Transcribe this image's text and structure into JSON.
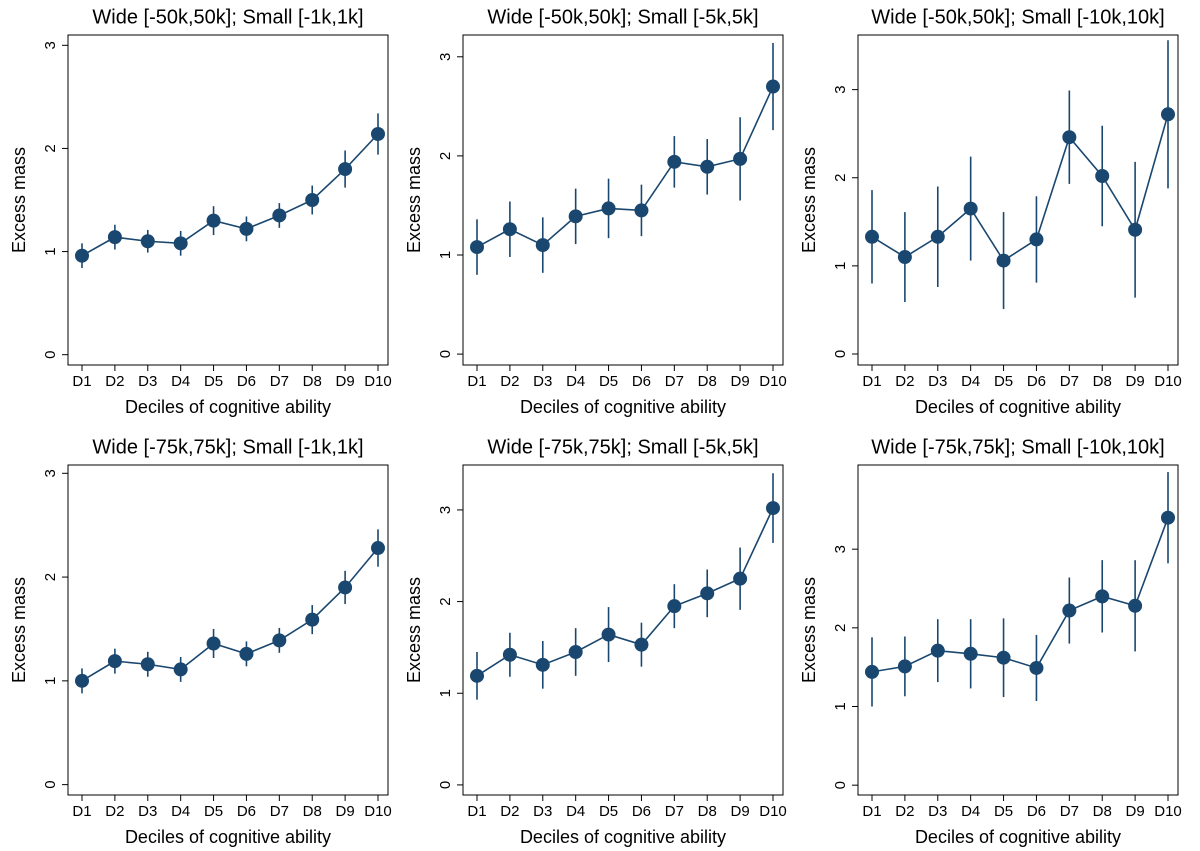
{
  "chart_data": [
    {
      "type": "line",
      "title": "Wide [-50k,50k]; Small [-1k,1k]",
      "xlabel": "Deciles of cognitive ability",
      "ylabel": "Excess mass",
      "categories": [
        "D1",
        "D2",
        "D3",
        "D4",
        "D5",
        "D6",
        "D7",
        "D8",
        "D9",
        "D10"
      ],
      "series": [
        {
          "color": "#1a476f",
          "values": [
            0.96,
            1.14,
            1.1,
            1.08,
            1.3,
            1.22,
            1.35,
            1.5,
            1.8,
            2.14
          ],
          "errors": [
            0.12,
            0.12,
            0.11,
            0.12,
            0.14,
            0.12,
            0.12,
            0.14,
            0.18,
            0.2
          ]
        }
      ],
      "ylim": [
        -0.1,
        3.1
      ],
      "yticks": [
        0,
        1,
        2,
        3
      ]
    },
    {
      "type": "line",
      "title": "Wide [-50k,50k]; Small [-5k,5k]",
      "xlabel": "Deciles of cognitive ability",
      "ylabel": "Excess mass",
      "categories": [
        "D1",
        "D2",
        "D3",
        "D4",
        "D5",
        "D6",
        "D7",
        "D8",
        "D9",
        "D10"
      ],
      "series": [
        {
          "color": "#1a476f",
          "values": [
            1.08,
            1.26,
            1.1,
            1.39,
            1.47,
            1.45,
            1.94,
            1.89,
            1.97,
            2.7
          ],
          "errors": [
            0.28,
            0.28,
            0.28,
            0.28,
            0.3,
            0.26,
            0.26,
            0.28,
            0.42,
            0.44
          ]
        }
      ],
      "ylim": [
        -0.11,
        3.22
      ],
      "yticks": [
        0,
        1,
        2,
        3
      ]
    },
    {
      "type": "line",
      "title": "Wide [-50k,50k]; Small [-10k,10k]",
      "xlabel": "Deciles of cognitive ability",
      "ylabel": "Excess mass",
      "categories": [
        "D1",
        "D2",
        "D3",
        "D4",
        "D5",
        "D6",
        "D7",
        "D8",
        "D9",
        "D10"
      ],
      "series": [
        {
          "color": "#1a476f",
          "values": [
            1.33,
            1.1,
            1.33,
            1.65,
            1.06,
            1.3,
            2.46,
            2.02,
            1.41,
            2.72
          ],
          "errors": [
            0.53,
            0.51,
            0.57,
            0.59,
            0.55,
            0.49,
            0.53,
            0.57,
            0.77,
            0.84
          ]
        }
      ],
      "ylim": [
        -0.125,
        3.62
      ],
      "yticks": [
        0,
        1,
        2,
        3
      ]
    },
    {
      "type": "line",
      "title": "Wide [-75k,75k]; Small [-1k,1k]",
      "xlabel": "Deciles of cognitive ability",
      "ylabel": "Excess mass",
      "categories": [
        "D1",
        "D2",
        "D3",
        "D4",
        "D5",
        "D6",
        "D7",
        "D8",
        "D9",
        "D10"
      ],
      "series": [
        {
          "color": "#1a476f",
          "values": [
            1.0,
            1.19,
            1.16,
            1.11,
            1.36,
            1.26,
            1.39,
            1.59,
            1.9,
            2.28
          ],
          "errors": [
            0.12,
            0.12,
            0.12,
            0.12,
            0.14,
            0.12,
            0.12,
            0.14,
            0.16,
            0.18
          ]
        }
      ],
      "ylim": [
        -0.1,
        3.08
      ],
      "yticks": [
        0,
        1,
        2,
        3
      ]
    },
    {
      "type": "line",
      "title": "Wide [-75k,75k]; Small [-5k,5k]",
      "xlabel": "Deciles of cognitive ability",
      "ylabel": "Excess mass",
      "categories": [
        "D1",
        "D2",
        "D3",
        "D4",
        "D5",
        "D6",
        "D7",
        "D8",
        "D9",
        "D10"
      ],
      "series": [
        {
          "color": "#1a476f",
          "values": [
            1.19,
            1.42,
            1.31,
            1.45,
            1.64,
            1.53,
            1.95,
            2.09,
            2.25,
            3.02
          ],
          "errors": [
            0.26,
            0.24,
            0.26,
            0.26,
            0.3,
            0.24,
            0.24,
            0.26,
            0.34,
            0.38
          ]
        }
      ],
      "ylim": [
        -0.11,
        3.49
      ],
      "yticks": [
        0,
        1,
        2,
        3
      ]
    },
    {
      "type": "line",
      "title": "Wide [-75k,75k]; Small [-10k,10k]",
      "xlabel": "Deciles of cognitive ability",
      "ylabel": "Excess mass",
      "categories": [
        "D1",
        "D2",
        "D3",
        "D4",
        "D5",
        "D6",
        "D7",
        "D8",
        "D9",
        "D10"
      ],
      "series": [
        {
          "color": "#1a476f",
          "values": [
            1.44,
            1.51,
            1.71,
            1.67,
            1.62,
            1.49,
            2.22,
            2.4,
            2.28,
            3.4
          ],
          "errors": [
            0.44,
            0.38,
            0.4,
            0.44,
            0.5,
            0.42,
            0.42,
            0.46,
            0.58,
            0.58
          ]
        }
      ],
      "ylim": [
        -0.125,
        4.07
      ],
      "yticks": [
        0,
        1,
        2,
        3
      ]
    }
  ]
}
